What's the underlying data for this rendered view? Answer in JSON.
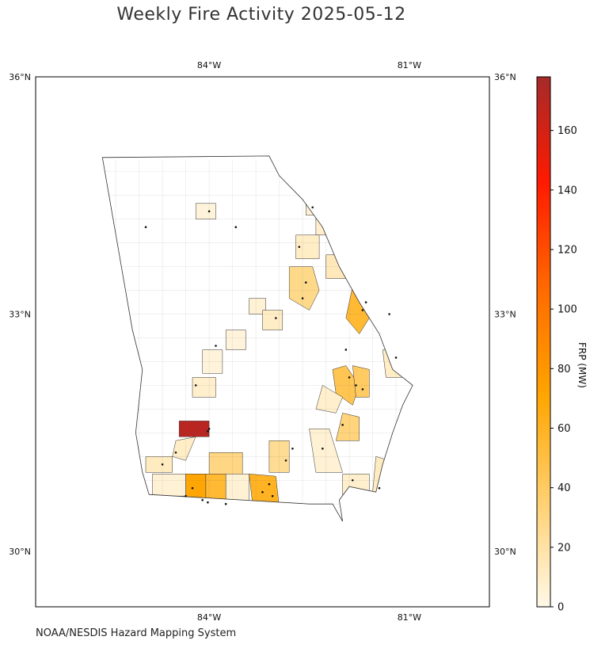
{
  "title": "Weekly Fire Activity 2025-05-12",
  "credit": "NOAA/NESDIS Hazard Mapping System",
  "map": {
    "extent": {
      "lon_min": -86.6,
      "lon_max": -79.8,
      "lat_min": 29.3,
      "lat_max": 36.0
    },
    "lon_ticks": [
      {
        "value": -84,
        "label": "84°W"
      },
      {
        "value": -81,
        "label": "81°W"
      }
    ],
    "lat_ticks": [
      {
        "value": 36,
        "label": "36°N"
      },
      {
        "value": 33,
        "label": "33°N"
      },
      {
        "value": 30,
        "label": "30°N"
      }
    ],
    "grid": true,
    "state_outline": [
      [
        -85.6,
        34.98
      ],
      [
        -83.1,
        35.0
      ],
      [
        -82.95,
        34.75
      ],
      [
        -82.6,
        34.45
      ],
      [
        -82.3,
        34.1
      ],
      [
        -82.05,
        33.6
      ],
      [
        -81.75,
        33.15
      ],
      [
        -81.45,
        32.75
      ],
      [
        -81.25,
        32.3
      ],
      [
        -80.95,
        32.1
      ],
      [
        -81.1,
        31.85
      ],
      [
        -81.25,
        31.5
      ],
      [
        -81.4,
        31.1
      ],
      [
        -81.5,
        30.75
      ],
      [
        -81.9,
        30.82
      ],
      [
        -82.05,
        30.65
      ],
      [
        -82.0,
        30.38
      ],
      [
        -82.15,
        30.6
      ],
      [
        -82.5,
        30.6
      ],
      [
        -84.9,
        30.72
      ],
      [
        -85.0,
        31.0
      ],
      [
        -85.1,
        31.5
      ],
      [
        -85.05,
        31.9
      ],
      [
        -85.0,
        32.3
      ],
      [
        -85.15,
        32.8
      ],
      [
        -85.6,
        34.98
      ]
    ],
    "counties": [
      {
        "frp": 4,
        "ring": [
          [
            -84.2,
            34.4
          ],
          [
            -83.9,
            34.4
          ],
          [
            -83.9,
            34.2
          ],
          [
            -84.2,
            34.2
          ]
        ]
      },
      {
        "frp": 6,
        "ring": [
          [
            -82.55,
            34.5
          ],
          [
            -82.3,
            34.5
          ],
          [
            -82.3,
            34.25
          ],
          [
            -82.55,
            34.25
          ]
        ]
      },
      {
        "frp": 8,
        "ring": [
          [
            -82.4,
            34.25
          ],
          [
            -82.1,
            34.25
          ],
          [
            -82.1,
            34.0
          ],
          [
            -82.4,
            34.0
          ]
        ]
      },
      {
        "frp": 10,
        "ring": [
          [
            -82.7,
            34.0
          ],
          [
            -82.35,
            34.0
          ],
          [
            -82.35,
            33.7
          ],
          [
            -82.7,
            33.7
          ]
        ]
      },
      {
        "frp": 14,
        "ring": [
          [
            -82.25,
            33.75
          ],
          [
            -81.95,
            33.75
          ],
          [
            -81.95,
            33.45
          ],
          [
            -82.25,
            33.45
          ]
        ]
      },
      {
        "frp": 28,
        "ring": [
          [
            -82.8,
            33.6
          ],
          [
            -82.45,
            33.6
          ],
          [
            -82.35,
            33.3
          ],
          [
            -82.5,
            33.05
          ],
          [
            -82.8,
            33.2
          ]
        ]
      },
      {
        "frp": 55,
        "ring": [
          [
            -81.85,
            33.35
          ],
          [
            -81.55,
            33.35
          ],
          [
            -81.6,
            32.95
          ],
          [
            -81.75,
            32.75
          ],
          [
            -81.95,
            32.95
          ]
        ]
      },
      {
        "frp": 6,
        "ring": [
          [
            -81.55,
            33.25
          ],
          [
            -81.15,
            33.15
          ],
          [
            -81.3,
            32.95
          ],
          [
            -81.6,
            32.95
          ]
        ]
      },
      {
        "frp": 8,
        "ring": [
          [
            -81.05,
            32.9
          ],
          [
            -80.85,
            32.7
          ],
          [
            -80.95,
            32.35
          ],
          [
            -81.25,
            32.55
          ]
        ]
      },
      {
        "frp": 10,
        "ring": [
          [
            -81.4,
            32.55
          ],
          [
            -81.1,
            32.55
          ],
          [
            -81.05,
            32.2
          ],
          [
            -81.35,
            32.2
          ]
        ]
      },
      {
        "frp": 6,
        "ring": [
          [
            -83.4,
            33.2
          ],
          [
            -83.15,
            33.2
          ],
          [
            -83.15,
            33.0
          ],
          [
            -83.4,
            33.0
          ]
        ]
      },
      {
        "frp": 4,
        "ring": [
          [
            -83.75,
            32.8
          ],
          [
            -83.45,
            32.8
          ],
          [
            -83.45,
            32.55
          ],
          [
            -83.75,
            32.55
          ]
        ]
      },
      {
        "frp": 10,
        "ring": [
          [
            -83.2,
            33.05
          ],
          [
            -82.9,
            33.05
          ],
          [
            -82.9,
            32.8
          ],
          [
            -83.2,
            32.8
          ]
        ]
      },
      {
        "frp": 4,
        "ring": [
          [
            -84.1,
            32.55
          ],
          [
            -83.8,
            32.55
          ],
          [
            -83.8,
            32.25
          ],
          [
            -84.1,
            32.25
          ]
        ]
      },
      {
        "frp": 8,
        "ring": [
          [
            -84.25,
            32.2
          ],
          [
            -83.9,
            32.2
          ],
          [
            -83.9,
            31.95
          ],
          [
            -84.25,
            31.95
          ]
        ]
      },
      {
        "frp": 45,
        "ring": [
          [
            -81.95,
            32.35
          ],
          [
            -81.75,
            32.1
          ],
          [
            -81.85,
            31.85
          ],
          [
            -82.1,
            32.0
          ],
          [
            -82.15,
            32.3
          ]
        ]
      },
      {
        "frp": 40,
        "ring": [
          [
            -81.85,
            32.35
          ],
          [
            -81.6,
            32.3
          ],
          [
            -81.6,
            31.95
          ],
          [
            -81.8,
            31.95
          ]
        ]
      },
      {
        "frp": 8,
        "ring": [
          [
            -82.3,
            32.1
          ],
          [
            -82.0,
            31.95
          ],
          [
            -82.1,
            31.75
          ],
          [
            -82.4,
            31.8
          ]
        ]
      },
      {
        "frp": 32,
        "ring": [
          [
            -82.0,
            31.75
          ],
          [
            -81.75,
            31.7
          ],
          [
            -81.75,
            31.4
          ],
          [
            -82.1,
            31.4
          ]
        ]
      },
      {
        "frp": 170,
        "ring": [
          [
            -84.45,
            31.65
          ],
          [
            -84.0,
            31.65
          ],
          [
            -84.0,
            31.45
          ],
          [
            -84.45,
            31.45
          ]
        ]
      },
      {
        "frp": 10,
        "ring": [
          [
            -84.5,
            31.4
          ],
          [
            -84.2,
            31.45
          ],
          [
            -84.35,
            31.15
          ],
          [
            -84.55,
            31.2
          ]
        ]
      },
      {
        "frp": 12,
        "ring": [
          [
            -84.95,
            31.2
          ],
          [
            -84.55,
            31.2
          ],
          [
            -84.55,
            31.0
          ],
          [
            -84.95,
            31.0
          ]
        ]
      },
      {
        "frp": 30,
        "ring": [
          [
            -84.0,
            31.25
          ],
          [
            -83.5,
            31.25
          ],
          [
            -83.5,
            30.95
          ],
          [
            -84.0,
            30.95
          ]
        ]
      },
      {
        "frp": 25,
        "ring": [
          [
            -83.1,
            31.4
          ],
          [
            -82.8,
            31.4
          ],
          [
            -82.8,
            31.0
          ],
          [
            -83.1,
            31.0
          ]
        ]
      },
      {
        "frp": 6,
        "ring": [
          [
            -82.5,
            31.55
          ],
          [
            -82.2,
            31.55
          ],
          [
            -82.0,
            31.0
          ],
          [
            -82.4,
            31.0
          ]
        ]
      },
      {
        "frp": 6,
        "ring": [
          [
            -84.85,
            30.98
          ],
          [
            -84.35,
            30.98
          ],
          [
            -84.35,
            30.7
          ],
          [
            -84.85,
            30.7
          ]
        ]
      },
      {
        "frp": 70,
        "ring": [
          [
            -84.35,
            30.98
          ],
          [
            -84.05,
            30.98
          ],
          [
            -84.05,
            30.55
          ],
          [
            -84.35,
            30.55
          ]
        ]
      },
      {
        "frp": 55,
        "ring": [
          [
            -84.05,
            30.98
          ],
          [
            -83.75,
            30.98
          ],
          [
            -83.75,
            30.55
          ],
          [
            -84.05,
            30.55
          ]
        ]
      },
      {
        "frp": 6,
        "ring": [
          [
            -83.75,
            30.98
          ],
          [
            -83.4,
            30.98
          ],
          [
            -83.4,
            30.55
          ],
          [
            -83.75,
            30.55
          ]
        ]
      },
      {
        "frp": 60,
        "ring": [
          [
            -83.4,
            30.98
          ],
          [
            -83.0,
            30.95
          ],
          [
            -82.95,
            30.55
          ],
          [
            -83.35,
            30.6
          ]
        ]
      },
      {
        "frp": 8,
        "ring": [
          [
            -82.0,
            30.98
          ],
          [
            -81.6,
            30.98
          ],
          [
            -81.6,
            30.65
          ],
          [
            -82.0,
            30.65
          ]
        ]
      },
      {
        "frp": 12,
        "ring": [
          [
            -81.5,
            31.2
          ],
          [
            -81.1,
            31.1
          ],
          [
            -81.2,
            30.75
          ],
          [
            -81.55,
            30.75
          ]
        ]
      },
      {
        "frp": 4,
        "ring": [
          [
            -82.0,
            30.65
          ],
          [
            -81.8,
            30.65
          ],
          [
            -81.8,
            30.3
          ],
          [
            -82.0,
            30.3
          ]
        ]
      }
    ],
    "detections": [
      [
        -84.0,
        31.55
      ],
      [
        -84.02,
        31.52
      ],
      [
        -84.35,
        30.7
      ],
      [
        -84.25,
        30.8
      ],
      [
        -84.1,
        30.65
      ],
      [
        -84.02,
        30.62
      ],
      [
        -83.75,
        30.6
      ],
      [
        -83.2,
        30.75
      ],
      [
        -83.1,
        30.85
      ],
      [
        -83.05,
        30.7
      ],
      [
        -82.75,
        31.3
      ],
      [
        -82.85,
        31.15
      ],
      [
        -81.8,
        32.1
      ],
      [
        -81.9,
        32.2
      ],
      [
        -81.7,
        32.05
      ],
      [
        -81.65,
        33.15
      ],
      [
        -81.7,
        33.05
      ],
      [
        -82.55,
        33.4
      ],
      [
        -82.6,
        33.2
      ],
      [
        -82.65,
        33.85
      ],
      [
        -82.45,
        34.35
      ],
      [
        -84.0,
        34.3
      ],
      [
        -81.45,
        30.8
      ],
      [
        -81.85,
        30.9
      ],
      [
        -82.3,
        31.3
      ],
      [
        -83.9,
        32.6
      ],
      [
        -84.2,
        32.1
      ],
      [
        -84.5,
        31.25
      ],
      [
        -83.0,
        32.95
      ],
      [
        -81.95,
        32.55
      ],
      [
        -82.0,
        31.6
      ],
      [
        -81.2,
        32.45
      ],
      [
        -83.6,
        34.1
      ],
      [
        -84.95,
        34.1
      ],
      [
        -84.7,
        31.1
      ],
      [
        -81.3,
        33.0
      ]
    ]
  },
  "colorbar": {
    "label": "FRP (MW)",
    "min": 0,
    "max": 178,
    "ticks": [
      0,
      20,
      40,
      60,
      80,
      100,
      120,
      140,
      160
    ],
    "colors": [
      "#fff8e8",
      "#ffd070",
      "#ffa500",
      "#ff6a00",
      "#ff1a00",
      "#a52a2a"
    ]
  }
}
